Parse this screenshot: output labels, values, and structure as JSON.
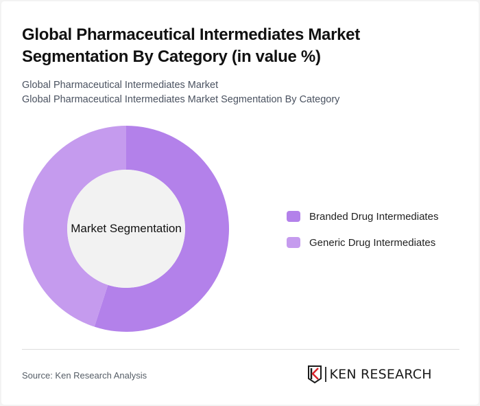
{
  "header": {
    "title": "Global Pharmaceutical Intermediates Market Segmentation By Category (in value %)",
    "subtitle_line1": "Global Pharmaceutical Intermediates Market",
    "subtitle_line2": "Global Pharmaceutical Intermediates Market Segmentation By Category"
  },
  "chart": {
    "center_label": "Market Segmentation"
  },
  "legend": {
    "items": [
      {
        "label": "Branded Drug Intermediates",
        "color": "#b381ea"
      },
      {
        "label": "Generic Drug Intermediates",
        "color": "#c59bee"
      }
    ]
  },
  "footer": {
    "source": "Source: Ken Research Analysis",
    "logo_text": "KEN RESEARCH"
  },
  "chart_data": {
    "type": "pie",
    "subtype": "donut",
    "title": "Global Pharmaceutical Intermediates Market Segmentation By Category (in value %)",
    "subtitle": "Global Pharmaceutical Intermediates Market Segmentation By Category",
    "center_label": "Market Segmentation",
    "categories": [
      "Branded Drug Intermediates",
      "Generic Drug Intermediates"
    ],
    "values": [
      55,
      45
    ],
    "colors": [
      "#b381ea",
      "#c59bee"
    ],
    "legend_position": "right",
    "unit": "%"
  }
}
